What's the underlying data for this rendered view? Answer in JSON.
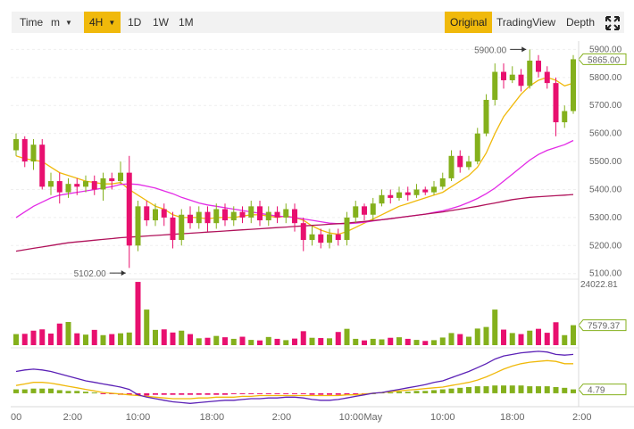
{
  "toolbar": {
    "time_label": "Time",
    "interval_select": "m",
    "intervals": [
      "4H",
      "1D",
      "1W",
      "1M"
    ],
    "active_interval": "4H",
    "views": [
      "Original",
      "TradingView",
      "Depth"
    ],
    "active_view": "Original",
    "fullscreen_icon": "fullscreen-expand-icon"
  },
  "colors": {
    "up": "#84b01c",
    "down": "#e8106f",
    "ma_short": "#f0b90b",
    "ma_mid": "#e32be6",
    "ma_long": "#b0125a",
    "accent": "#f0b90b"
  },
  "chart_data": [
    {
      "type": "candlestick",
      "title": "",
      "x_ticks": [
        "00",
        "2:00",
        "10:00",
        "18:00",
        "2:00",
        "10:00",
        "May",
        "10:00",
        "18:00",
        "2:00"
      ],
      "y_ticks": [
        5100.0,
        5200.0,
        5300.0,
        5400.0,
        5500.0,
        5600.0,
        5700.0,
        5800.0,
        5900.0
      ],
      "ylim": [
        5080,
        5930
      ],
      "current_price_label": "5865.00",
      "annotations": [
        {
          "label": "5900.00",
          "value": 5900.0
        },
        {
          "label": "5102.00",
          "value": 5102.0
        }
      ],
      "candles": [
        [
          5540,
          5580,
          5600,
          5520
        ],
        [
          5580,
          5500,
          5590,
          5480
        ],
        [
          5500,
          5560,
          5580,
          5470
        ],
        [
          5560,
          5410,
          5580,
          5400
        ],
        [
          5410,
          5430,
          5460,
          5380
        ],
        [
          5430,
          5390,
          5460,
          5350
        ],
        [
          5390,
          5420,
          5440,
          5370
        ],
        [
          5420,
          5410,
          5440,
          5380
        ],
        [
          5410,
          5430,
          5450,
          5390
        ],
        [
          5430,
          5400,
          5450,
          5380
        ],
        [
          5400,
          5440,
          5460,
          5360
        ],
        [
          5440,
          5430,
          5460,
          5400
        ],
        [
          5430,
          5460,
          5500,
          5420
        ],
        [
          5460,
          5200,
          5520,
          5120
        ],
        [
          5200,
          5340,
          5360,
          5180
        ],
        [
          5340,
          5290,
          5360,
          5270
        ],
        [
          5290,
          5330,
          5350,
          5270
        ],
        [
          5330,
          5300,
          5350,
          5270
        ],
        [
          5300,
          5220,
          5320,
          5190
        ],
        [
          5220,
          5310,
          5330,
          5200
        ],
        [
          5310,
          5280,
          5340,
          5260
        ],
        [
          5280,
          5320,
          5340,
          5260
        ],
        [
          5320,
          5280,
          5340,
          5250
        ],
        [
          5280,
          5330,
          5350,
          5260
        ],
        [
          5330,
          5290,
          5350,
          5270
        ],
        [
          5290,
          5320,
          5340,
          5270
        ],
        [
          5320,
          5300,
          5340,
          5280
        ],
        [
          5300,
          5340,
          5360,
          5280
        ],
        [
          5340,
          5290,
          5360,
          5270
        ],
        [
          5290,
          5320,
          5340,
          5270
        ],
        [
          5320,
          5300,
          5340,
          5280
        ],
        [
          5300,
          5330,
          5350,
          5280
        ],
        [
          5330,
          5280,
          5350,
          5250
        ],
        [
          5280,
          5220,
          5300,
          5180
        ],
        [
          5220,
          5240,
          5270,
          5200
        ],
        [
          5240,
          5210,
          5260,
          5190
        ],
        [
          5210,
          5240,
          5260,
          5190
        ],
        [
          5240,
          5220,
          5260,
          5200
        ],
        [
          5220,
          5300,
          5320,
          5200
        ],
        [
          5300,
          5340,
          5360,
          5280
        ],
        [
          5340,
          5310,
          5350,
          5290
        ],
        [
          5310,
          5350,
          5370,
          5290
        ],
        [
          5350,
          5380,
          5400,
          5340
        ],
        [
          5380,
          5370,
          5400,
          5350
        ],
        [
          5370,
          5390,
          5410,
          5360
        ],
        [
          5390,
          5380,
          5410,
          5360
        ],
        [
          5380,
          5400,
          5420,
          5370
        ],
        [
          5400,
          5390,
          5410,
          5380
        ],
        [
          5390,
          5410,
          5430,
          5380
        ],
        [
          5410,
          5440,
          5460,
          5400
        ],
        [
          5440,
          5520,
          5540,
          5430
        ],
        [
          5520,
          5480,
          5540,
          5460
        ],
        [
          5480,
          5500,
          5520,
          5470
        ],
        [
          5500,
          5600,
          5620,
          5490
        ],
        [
          5600,
          5720,
          5740,
          5590
        ],
        [
          5720,
          5820,
          5850,
          5700
        ],
        [
          5820,
          5790,
          5850,
          5760
        ],
        [
          5790,
          5810,
          5840,
          5780
        ],
        [
          5810,
          5770,
          5830,
          5750
        ],
        [
          5770,
          5860,
          5900,
          5760
        ],
        [
          5860,
          5820,
          5880,
          5800
        ],
        [
          5820,
          5780,
          5840,
          5760
        ],
        [
          5780,
          5640,
          5800,
          5590
        ],
        [
          5640,
          5680,
          5700,
          5620
        ],
        [
          5680,
          5865,
          5880,
          5670
        ]
      ],
      "ma_short": [
        5520,
        5510,
        5505,
        5500,
        5480,
        5460,
        5450,
        5440,
        5430,
        5425,
        5420,
        5420,
        5425,
        5400,
        5380,
        5360,
        5340,
        5330,
        5310,
        5300,
        5300,
        5300,
        5295,
        5300,
        5300,
        5300,
        5305,
        5310,
        5310,
        5305,
        5300,
        5305,
        5300,
        5290,
        5270,
        5255,
        5245,
        5240,
        5250,
        5265,
        5280,
        5295,
        5310,
        5325,
        5340,
        5350,
        5360,
        5370,
        5380,
        5390,
        5410,
        5430,
        5450,
        5480,
        5530,
        5600,
        5660,
        5700,
        5740,
        5770,
        5790,
        5800,
        5790,
        5770,
        5780
      ],
      "ma_mid": [
        5300,
        5320,
        5340,
        5355,
        5370,
        5380,
        5385,
        5390,
        5395,
        5400,
        5405,
        5410,
        5418,
        5420,
        5418,
        5412,
        5405,
        5395,
        5385,
        5372,
        5362,
        5352,
        5345,
        5340,
        5335,
        5330,
        5325,
        5320,
        5315,
        5310,
        5305,
        5303,
        5300,
        5295,
        5290,
        5285,
        5280,
        5278,
        5278,
        5280,
        5283,
        5288,
        5292,
        5296,
        5300,
        5304,
        5308,
        5312,
        5318,
        5324,
        5332,
        5342,
        5354,
        5368,
        5385,
        5405,
        5430,
        5455,
        5480,
        5505,
        5525,
        5540,
        5550,
        5560,
        5575
      ],
      "ma_long": [
        5180,
        5185,
        5190,
        5195,
        5200,
        5205,
        5210,
        5213,
        5216,
        5219,
        5222,
        5225,
        5228,
        5230,
        5232,
        5234,
        5236,
        5238,
        5240,
        5242,
        5244,
        5246,
        5248,
        5250,
        5252,
        5254,
        5256,
        5258,
        5260,
        5262,
        5264,
        5266,
        5268,
        5270,
        5272,
        5274,
        5276,
        5278,
        5280,
        5283,
        5286,
        5289,
        5292,
        5296,
        5300,
        5304,
        5308,
        5312,
        5316,
        5320,
        5325,
        5330,
        5335,
        5340,
        5346,
        5352,
        5358,
        5364,
        5368,
        5372,
        5374,
        5376,
        5378,
        5380,
        5382
      ]
    },
    {
      "type": "bar",
      "title": "",
      "y_ticks": [
        24022.81
      ],
      "current_label": "7579.37",
      "ylim": [
        0,
        24022.81
      ],
      "values": [
        4200,
        4300,
        5500,
        6000,
        4400,
        8200,
        8800,
        4500,
        4000,
        5800,
        3800,
        4200,
        4500,
        4800,
        24000,
        13500,
        5800,
        6000,
        4800,
        5500,
        4200,
        2600,
        2800,
        3500,
        3000,
        2400,
        3200,
        2000,
        1800,
        3100,
        2400,
        1900,
        2500,
        5300,
        2800,
        2700,
        2600,
        5000,
        6200,
        2400,
        1800,
        2400,
        2200,
        2800,
        3000,
        2400,
        2000,
        1600,
        1900,
        2900,
        4600,
        4200,
        3200,
        6300,
        6900,
        13500,
        5900,
        4600,
        4200,
        5500,
        6200,
        4700,
        8700,
        3800,
        7580
      ],
      "up": [
        true,
        false,
        false,
        false,
        false,
        false,
        true,
        false,
        true,
        false,
        true,
        false,
        true,
        true,
        false,
        true,
        true,
        false,
        false,
        true,
        false,
        true,
        false,
        true,
        false,
        true,
        false,
        true,
        false,
        true,
        false,
        true,
        false,
        false,
        true,
        false,
        true,
        false,
        true,
        true,
        false,
        true,
        true,
        false,
        true,
        false,
        true,
        false,
        true,
        true,
        true,
        false,
        true,
        true,
        true,
        true,
        false,
        true,
        false,
        true,
        false,
        false,
        false,
        true,
        true
      ]
    },
    {
      "type": "line",
      "title": "",
      "current_label": "4.79",
      "ylim": [
        -15,
        55
      ],
      "series": [
        {
          "values": [
            10,
            12,
            14,
            14,
            13,
            11,
            9,
            7,
            5,
            3,
            1,
            0,
            -1,
            -2,
            -3,
            -4,
            -5,
            -6,
            -7,
            -7,
            -7,
            -6,
            -6,
            -5,
            -5,
            -5,
            -4,
            -4,
            -3,
            -3,
            -3,
            -3,
            -3,
            -3,
            -3,
            -3,
            -3,
            -3,
            -2,
            -2,
            -1,
            0,
            1,
            2,
            3,
            4,
            5,
            6,
            7,
            8,
            10,
            12,
            14,
            17,
            21,
            26,
            31,
            35,
            38,
            40,
            41,
            42,
            41,
            38,
            38
          ]
        },
        {
          "values": [
            28,
            30,
            31,
            30,
            28,
            25,
            22,
            19,
            16,
            14,
            12,
            10,
            8,
            5,
            -2,
            -5,
            -7,
            -9,
            -11,
            -12,
            -13,
            -12,
            -11,
            -10,
            -9,
            -9,
            -8,
            -7,
            -7,
            -6,
            -6,
            -5,
            -5,
            -6,
            -8,
            -9,
            -9,
            -8,
            -6,
            -4,
            -2,
            0,
            1,
            3,
            5,
            7,
            9,
            11,
            14,
            16,
            20,
            24,
            28,
            33,
            38,
            44,
            48,
            50,
            52,
            53,
            54,
            53,
            50,
            49,
            50
          ]
        },
        {
          "type": "bar",
          "values": [
            5,
            5,
            6,
            6,
            6,
            4,
            3,
            3,
            2,
            1,
            -1,
            -1,
            -2,
            -2,
            -3,
            -3,
            -2,
            -2,
            -2,
            -2,
            -2,
            -2,
            -2,
            -2,
            -2,
            -1,
            -1,
            -1,
            -1,
            -1,
            -1,
            -1,
            -1,
            -1,
            -2,
            -2,
            -2,
            -2,
            -2,
            -2,
            -1,
            0,
            1,
            1,
            2,
            2,
            3,
            3,
            4,
            5,
            6,
            7,
            8,
            9,
            9,
            10,
            10,
            10,
            10,
            9,
            9,
            9,
            8,
            7,
            5
          ]
        }
      ]
    }
  ]
}
